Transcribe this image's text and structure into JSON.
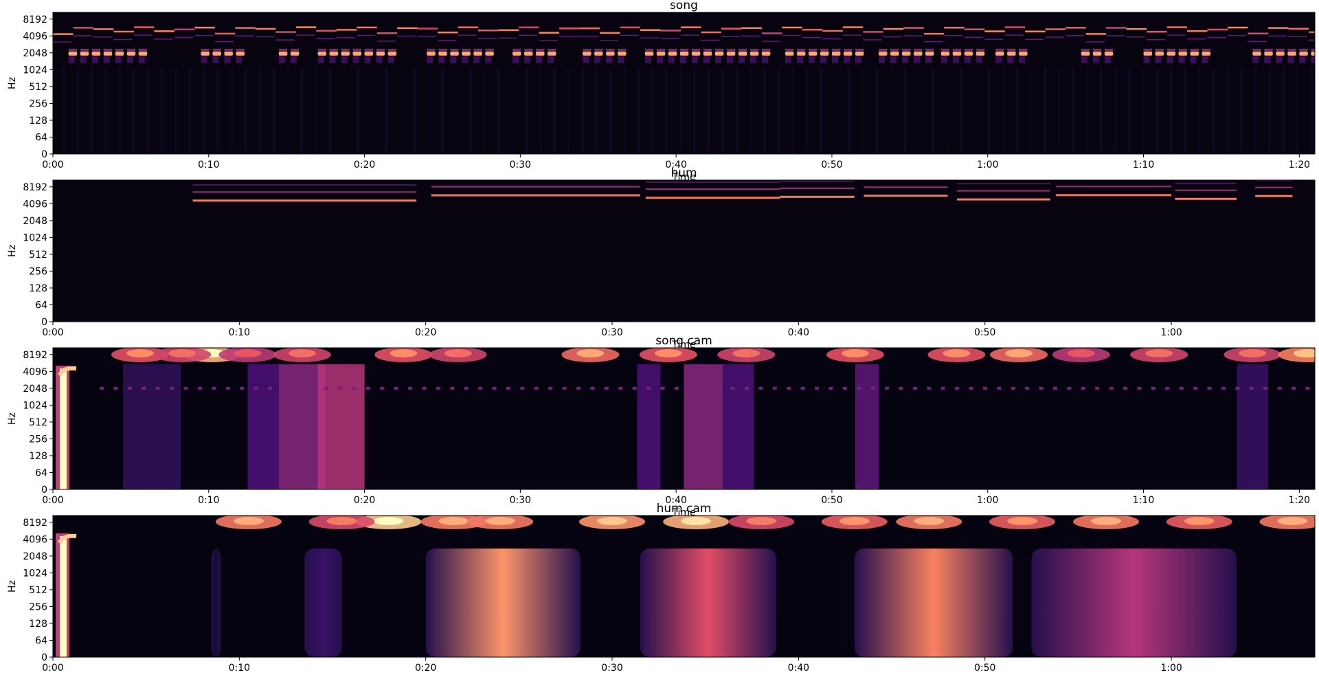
{
  "chart_data": [
    {
      "type": "heatmap",
      "title": "song",
      "xlabel": "Time",
      "ylabel": "Hz",
      "x_ticks": [
        "0:00",
        "0:10",
        "0:20",
        "0:30",
        "0:40",
        "0:50",
        "1:00",
        "1:10",
        "1:20"
      ],
      "y_ticks": [
        "0",
        "64",
        "128",
        "256",
        "512",
        "1024",
        "2048",
        "4096",
        "8192"
      ],
      "xlim_seconds": [
        0,
        81
      ],
      "y_scale": "log",
      "colormap": "magma",
      "content": "song spectrogram: strong harmonic line near 2048 Hz in repeated note bursts, fainter melodic lines between 4096 and 8192 Hz, very low energy below 1024 Hz",
      "bursts_seconds": [
        [
          1,
          6
        ],
        [
          9.5,
          12
        ],
        [
          14.5,
          16
        ],
        [
          17,
          22
        ],
        [
          24,
          28
        ],
        [
          29.5,
          32
        ],
        [
          34,
          37
        ],
        [
          38,
          40.5
        ],
        [
          41,
          46
        ],
        [
          47,
          49.5
        ],
        [
          50,
          52
        ],
        [
          53,
          56.5
        ],
        [
          57,
          59.5
        ],
        [
          60.5,
          62.5
        ],
        [
          66,
          68
        ],
        [
          70,
          74
        ],
        [
          77,
          81
        ]
      ]
    },
    {
      "type": "heatmap",
      "title": "hum",
      "xlabel": "Time",
      "ylabel": "Hz",
      "x_ticks": [
        "0:00",
        "0:10",
        "0:20",
        "0:30",
        "0:40",
        "0:50",
        "1:00"
      ],
      "y_ticks": [
        "0",
        "64",
        "128",
        "256",
        "512",
        "1024",
        "2048",
        "4096",
        "8192"
      ],
      "xlim_seconds": [
        0,
        67.7
      ],
      "y_scale": "log",
      "colormap": "magma",
      "content": "hum spectrogram: thin harmonic lines near 4096 to 8192 Hz during hummed phrases, otherwise dark",
      "phrases_seconds": [
        [
          7.5,
          19.5
        ],
        [
          20.3,
          31.5
        ],
        [
          31.8,
          39
        ],
        [
          39,
          43
        ],
        [
          43.5,
          48
        ],
        [
          48.5,
          53.5
        ],
        [
          53.8,
          60
        ],
        [
          60.2,
          63.5
        ],
        [
          64.5,
          66.5
        ]
      ]
    },
    {
      "type": "heatmap",
      "title": "song cam",
      "xlabel": "Time",
      "ylabel": "Hz",
      "x_ticks": [
        "0:00",
        "0:10",
        "0:20",
        "0:30",
        "0:40",
        "0:50",
        "1:00",
        "1:10",
        "1:20"
      ],
      "y_ticks": [
        "0",
        "64",
        "128",
        "256",
        "512",
        "1024",
        "2048",
        "4096",
        "8192"
      ],
      "xlim_seconds": [
        0,
        81
      ],
      "y_scale": "log",
      "colormap": "magma",
      "content": "class activation map over the song: bright vertical stripe at the start, glowing blobs along the top band above 8192 Hz, faint purple vertical bands",
      "blobs_seconds": [
        [
          10.2,
          1.0
        ],
        [
          5.6,
          0.6
        ],
        [
          8.3,
          0.5
        ],
        [
          12.5,
          0.4
        ],
        [
          16,
          0.5
        ],
        [
          22.5,
          0.6
        ],
        [
          26,
          0.5
        ],
        [
          34.5,
          0.7
        ],
        [
          39.5,
          0.6
        ],
        [
          44.5,
          0.5
        ],
        [
          51.5,
          0.6
        ],
        [
          58,
          0.6
        ],
        [
          62,
          0.7
        ],
        [
          66,
          0.4
        ],
        [
          71,
          0.5
        ],
        [
          77,
          0.5
        ],
        [
          80.5,
          0.8
        ]
      ],
      "bands_seconds": [
        [
          4.5,
          8.2,
          0.18
        ],
        [
          12.5,
          14.5,
          0.25
        ],
        [
          14.5,
          17.5,
          0.4
        ],
        [
          17,
          20,
          0.5
        ],
        [
          37.5,
          39,
          0.25
        ],
        [
          40.5,
          43,
          0.4
        ],
        [
          43,
          45,
          0.25
        ],
        [
          51.5,
          53,
          0.3
        ],
        [
          76,
          78,
          0.2
        ]
      ]
    },
    {
      "type": "heatmap",
      "title": "hum cam",
      "xlabel": "Time",
      "ylabel": "Hz",
      "x_ticks": [
        "0:00",
        "0:10",
        "0:20",
        "0:30",
        "0:40",
        "0:50",
        "1:00"
      ],
      "y_ticks": [
        "0",
        "64",
        "128",
        "256",
        "512",
        "1024",
        "2048",
        "4096",
        "8192"
      ],
      "xlim_seconds": [
        0,
        67.7
      ],
      "y_scale": "log",
      "colormap": "magma",
      "content": "class activation map over the hum: large orange-red regions centred near 0:24 and 0:46, purple regions near 0:35 and 0:58, blobs along the top band",
      "blobs_seconds": [
        [
          18,
          1.0
        ],
        [
          10.5,
          0.7
        ],
        [
          15.5,
          0.5
        ],
        [
          21.5,
          0.7
        ],
        [
          24,
          0.7
        ],
        [
          30,
          0.8
        ],
        [
          34.5,
          0.9
        ],
        [
          38,
          0.5
        ],
        [
          43,
          0.6
        ],
        [
          47,
          0.7
        ],
        [
          52,
          0.6
        ],
        [
          56.5,
          0.7
        ],
        [
          61.5,
          0.6
        ],
        [
          66.5,
          0.7
        ]
      ],
      "regions_seconds": [
        [
          20,
          28.3,
          0.78,
          24
        ],
        [
          31.5,
          38.8,
          0.62,
          35
        ],
        [
          43,
          51.5,
          0.74,
          46.5
        ],
        [
          52.5,
          63.5,
          0.5,
          58
        ],
        [
          13.5,
          15.5,
          0.2,
          14.5
        ],
        [
          8.5,
          9,
          0.1,
          8.7
        ]
      ]
    }
  ]
}
